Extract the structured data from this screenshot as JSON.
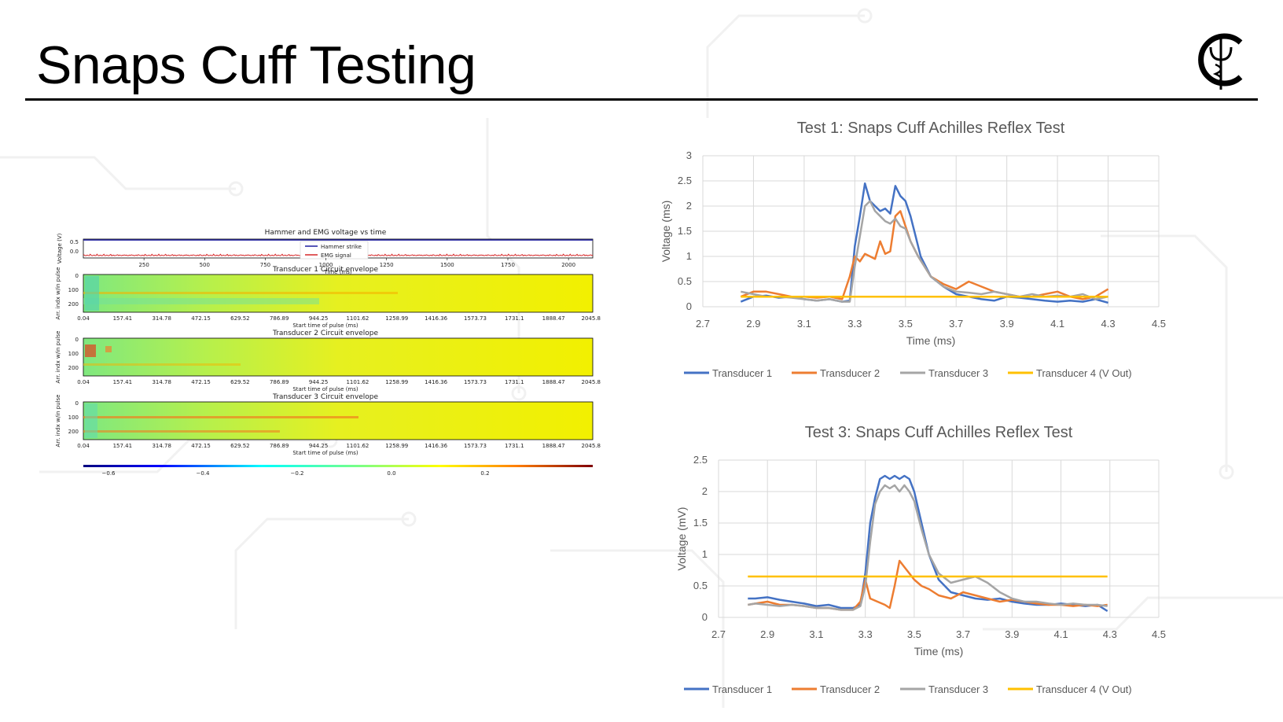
{
  "slide": {
    "title": "Snaps Cuff Testing"
  },
  "logo": {
    "letter": "C",
    "symbol": "caduceus-icon"
  },
  "colors": {
    "t1": "#4472c4",
    "t2": "#ed7d31",
    "t3": "#a5a5a5",
    "t4": "#ffc000",
    "hammer": "#1f1f9f",
    "emg": "#d62728"
  },
  "chart_data": [
    {
      "id": "hammer_emg",
      "type": "line",
      "title": "Hammer and EMG voltage vs time",
      "xlabel": "Time (ms)",
      "ylabel": "Voltage (V)",
      "xlim": [
        0,
        2100
      ],
      "ylim": [
        -0.1,
        1.0
      ],
      "x_ticks": [
        250,
        500,
        750,
        1000,
        1250,
        1500,
        1750,
        2000
      ],
      "y_ticks": [
        "0.5",
        "0.0"
      ],
      "series": [
        {
          "name": "Hammer strike",
          "values": [
            0.95,
            0.95
          ]
        },
        {
          "name": "EMG signal",
          "values": [
            0.05,
            0.05
          ]
        }
      ],
      "legend": "center"
    },
    {
      "id": "heatmaps",
      "type": "heatmap",
      "panels": [
        {
          "title": "Transducer 1 Circuit envelope"
        },
        {
          "title": "Transducer 2 Circuit envelope"
        },
        {
          "title": "Transducer 3 Circuit envelope"
        }
      ],
      "xlabel": "Start time of pulse (ms)",
      "ylabel": "Arr. indx w/in pulse",
      "x_ticks": [
        "0.04",
        "157.41",
        "314.78",
        "472.15",
        "629.52",
        "786.89",
        "944.25",
        "1101.62",
        "1258.99",
        "1416.36",
        "1573.73",
        "1731.1",
        "1888.47",
        "2045.83"
      ],
      "y_ticks": [
        "0",
        "100",
        "200"
      ],
      "colorbar_ticks": [
        "−0.6",
        "−0.4",
        "−0.2",
        "0.0",
        "0.2"
      ],
      "colorscale": "jet"
    },
    {
      "id": "test1",
      "type": "line",
      "title": "Test 1: Snaps Cuff Achilles Reflex Test",
      "xlabel": "Time (ms)",
      "ylabel": "Voltage (ms)",
      "xlim": [
        2.7,
        4.5
      ],
      "ylim": [
        0,
        3
      ],
      "x_ticks": [
        "2.7",
        "2.9",
        "3.1",
        "3.3",
        "3.5",
        "3.7",
        "3.9",
        "4.1",
        "4.3",
        "4.5"
      ],
      "y_ticks": [
        "0",
        "0.5",
        "1",
        "1.5",
        "2",
        "2.5",
        "3"
      ],
      "grid": true,
      "legend": "bottom",
      "series": [
        {
          "name": "Transducer 1",
          "x": [
            2.85,
            2.9,
            2.95,
            3.0,
            3.05,
            3.1,
            3.15,
            3.2,
            3.25,
            3.28,
            3.3,
            3.32,
            3.34,
            3.36,
            3.38,
            3.4,
            3.42,
            3.44,
            3.46,
            3.48,
            3.5,
            3.52,
            3.54,
            3.56,
            3.6,
            3.65,
            3.7,
            3.75,
            3.8,
            3.85,
            3.9,
            3.95,
            4.0,
            4.05,
            4.1,
            4.15,
            4.2,
            4.25,
            4.3
          ],
          "values": [
            0.1,
            0.2,
            0.22,
            0.18,
            0.2,
            0.15,
            0.12,
            0.15,
            0.1,
            0.12,
            1.2,
            1.8,
            2.45,
            2.1,
            2.0,
            1.9,
            1.95,
            1.85,
            2.4,
            2.2,
            2.1,
            1.8,
            1.4,
            1.0,
            0.6,
            0.4,
            0.25,
            0.2,
            0.15,
            0.12,
            0.2,
            0.18,
            0.15,
            0.12,
            0.1,
            0.12,
            0.1,
            0.15,
            0.08
          ]
        },
        {
          "name": "Transducer 2",
          "x": [
            2.85,
            2.9,
            2.95,
            3.0,
            3.05,
            3.1,
            3.15,
            3.2,
            3.25,
            3.28,
            3.3,
            3.32,
            3.34,
            3.36,
            3.38,
            3.4,
            3.42,
            3.44,
            3.46,
            3.48,
            3.5,
            3.52,
            3.55,
            3.6,
            3.65,
            3.7,
            3.75,
            3.8,
            3.85,
            3.9,
            3.95,
            4.0,
            4.05,
            4.1,
            4.15,
            4.2,
            4.25,
            4.3
          ],
          "values": [
            0.2,
            0.3,
            0.3,
            0.25,
            0.2,
            0.2,
            0.18,
            0.2,
            0.15,
            0.6,
            1.0,
            0.9,
            1.05,
            1.0,
            0.95,
            1.3,
            1.05,
            1.1,
            1.8,
            1.9,
            1.6,
            1.3,
            1.0,
            0.6,
            0.45,
            0.35,
            0.5,
            0.4,
            0.3,
            0.25,
            0.2,
            0.2,
            0.25,
            0.3,
            0.2,
            0.15,
            0.2,
            0.35
          ]
        },
        {
          "name": "Transducer 3",
          "x": [
            2.85,
            2.9,
            2.95,
            3.0,
            3.05,
            3.1,
            3.15,
            3.2,
            3.25,
            3.28,
            3.3,
            3.32,
            3.34,
            3.36,
            3.38,
            3.4,
            3.42,
            3.44,
            3.46,
            3.48,
            3.5,
            3.52,
            3.55,
            3.6,
            3.65,
            3.7,
            3.75,
            3.8,
            3.85,
            3.9,
            3.95,
            4.0,
            4.05,
            4.1,
            4.15,
            4.2,
            4.25,
            4.3
          ],
          "values": [
            0.3,
            0.25,
            0.2,
            0.2,
            0.18,
            0.15,
            0.12,
            0.15,
            0.1,
            0.1,
            0.8,
            1.4,
            2.0,
            2.1,
            1.9,
            1.8,
            1.7,
            1.65,
            1.75,
            1.6,
            1.55,
            1.3,
            1.0,
            0.6,
            0.4,
            0.3,
            0.28,
            0.25,
            0.3,
            0.25,
            0.2,
            0.25,
            0.2,
            0.22,
            0.2,
            0.25,
            0.15,
            0.2
          ]
        },
        {
          "name": "Transducer 4 (V Out)",
          "x": [
            2.85,
            4.3
          ],
          "values": [
            0.2,
            0.2
          ]
        }
      ]
    },
    {
      "id": "test3",
      "type": "line",
      "title": "Test 3: Snaps Cuff Achilles Reflex Test",
      "xlabel": "Time (ms)",
      "ylabel": "Voltage (mV)",
      "xlim": [
        2.7,
        4.5
      ],
      "ylim": [
        0,
        2.5
      ],
      "x_ticks": [
        "2.7",
        "2.9",
        "3.1",
        "3.3",
        "3.5",
        "3.7",
        "3.9",
        "4.1",
        "4.3",
        "4.5"
      ],
      "y_ticks": [
        "0",
        "0.5",
        "1",
        "1.5",
        "2",
        "2.5"
      ],
      "grid": true,
      "legend": "bottom",
      "series": [
        {
          "name": "Transducer 1",
          "x": [
            2.82,
            2.85,
            2.9,
            2.95,
            3.0,
            3.05,
            3.1,
            3.15,
            3.2,
            3.25,
            3.28,
            3.3,
            3.32,
            3.34,
            3.36,
            3.38,
            3.4,
            3.42,
            3.44,
            3.46,
            3.48,
            3.5,
            3.53,
            3.56,
            3.6,
            3.65,
            3.7,
            3.75,
            3.8,
            3.85,
            3.9,
            3.95,
            4.0,
            4.05,
            4.1,
            4.15,
            4.2,
            4.25,
            4.29
          ],
          "values": [
            0.3,
            0.3,
            0.32,
            0.28,
            0.25,
            0.22,
            0.18,
            0.2,
            0.15,
            0.15,
            0.2,
            0.7,
            1.5,
            1.9,
            2.2,
            2.25,
            2.2,
            2.25,
            2.2,
            2.25,
            2.2,
            2.0,
            1.5,
            1.0,
            0.6,
            0.4,
            0.35,
            0.3,
            0.28,
            0.3,
            0.25,
            0.22,
            0.2,
            0.2,
            0.22,
            0.2,
            0.18,
            0.2,
            0.1
          ]
        },
        {
          "name": "Transducer 2",
          "x": [
            2.82,
            2.85,
            2.9,
            2.95,
            3.0,
            3.05,
            3.1,
            3.15,
            3.2,
            3.25,
            3.28,
            3.3,
            3.32,
            3.35,
            3.38,
            3.4,
            3.42,
            3.44,
            3.46,
            3.48,
            3.5,
            3.53,
            3.56,
            3.6,
            3.65,
            3.7,
            3.75,
            3.8,
            3.85,
            3.9,
            3.95,
            4.0,
            4.05,
            4.1,
            4.15,
            4.2,
            4.25,
            4.29
          ],
          "values": [
            0.2,
            0.22,
            0.25,
            0.2,
            0.2,
            0.18,
            0.15,
            0.15,
            0.12,
            0.12,
            0.25,
            0.6,
            0.3,
            0.25,
            0.2,
            0.15,
            0.5,
            0.9,
            0.8,
            0.7,
            0.6,
            0.5,
            0.45,
            0.35,
            0.3,
            0.4,
            0.35,
            0.3,
            0.25,
            0.28,
            0.25,
            0.22,
            0.2,
            0.2,
            0.18,
            0.2,
            0.18,
            0.2
          ]
        },
        {
          "name": "Transducer 3",
          "x": [
            2.82,
            2.85,
            2.9,
            2.95,
            3.0,
            3.05,
            3.1,
            3.15,
            3.2,
            3.25,
            3.28,
            3.3,
            3.32,
            3.34,
            3.36,
            3.38,
            3.4,
            3.42,
            3.44,
            3.46,
            3.48,
            3.5,
            3.53,
            3.56,
            3.6,
            3.65,
            3.7,
            3.75,
            3.8,
            3.85,
            3.9,
            3.95,
            4.0,
            4.05,
            4.1,
            4.15,
            4.2,
            4.25,
            4.29
          ],
          "values": [
            0.2,
            0.22,
            0.2,
            0.18,
            0.2,
            0.18,
            0.15,
            0.15,
            0.12,
            0.12,
            0.18,
            0.5,
            1.2,
            1.8,
            2.0,
            2.1,
            2.05,
            2.1,
            2.0,
            2.1,
            2.0,
            1.85,
            1.4,
            1.0,
            0.7,
            0.55,
            0.6,
            0.65,
            0.55,
            0.4,
            0.3,
            0.25,
            0.25,
            0.22,
            0.2,
            0.22,
            0.2,
            0.2,
            0.18
          ]
        },
        {
          "name": "Transducer 4 (V Out)",
          "x": [
            2.82,
            4.29
          ],
          "values": [
            0.65,
            0.65
          ]
        }
      ]
    }
  ]
}
